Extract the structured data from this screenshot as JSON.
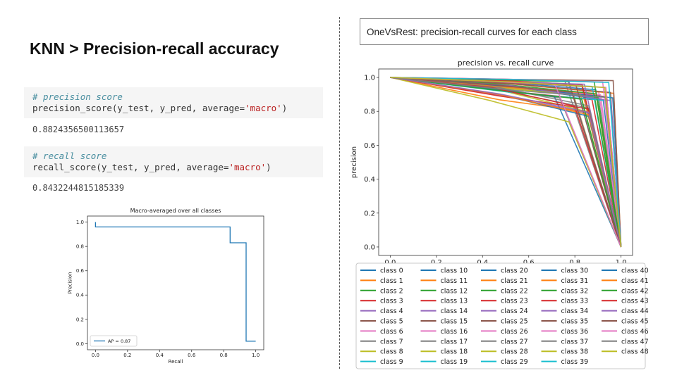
{
  "slide": {
    "title": "KNN > Precision-recall accuracy",
    "right_caption": "OneVsRest: precision-recall curves for each class"
  },
  "code_cells": [
    {
      "comment": "# precision score",
      "code_prefix": "precision_score(y_test, y_pred, average=",
      "code_string": "'macro'",
      "code_suffix": ")",
      "output": "0.8824356500113657"
    },
    {
      "comment": "# recall score",
      "code_prefix": "recall_score(y_test, y_pred, average=",
      "code_string": "'macro'",
      "code_suffix": ")",
      "output": "0.8432244815185339"
    }
  ],
  "chart_data": [
    {
      "type": "line",
      "title": "Macro-averaged over all classes",
      "xlabel": "Recall",
      "ylabel": "Precision",
      "xlim": [
        -0.05,
        1.05
      ],
      "ylim": [
        -0.05,
        1.05
      ],
      "xticks": [
        "0.0",
        "0.2",
        "0.4",
        "0.6",
        "0.8",
        "1.0"
      ],
      "yticks": [
        "0.0",
        "0.2",
        "0.4",
        "0.6",
        "0.8",
        "1.0"
      ],
      "series": [
        {
          "name": "AP = 0.87",
          "color": "#1f77b4",
          "step": true,
          "x": [
            0.0,
            0.0,
            0.84,
            0.84,
            0.94,
            0.94,
            1.0
          ],
          "y": [
            1.0,
            0.96,
            0.96,
            0.83,
            0.83,
            0.02,
            0.02
          ]
        }
      ],
      "legend_position": "lower-left",
      "grid": false
    },
    {
      "type": "line",
      "title": "precision vs. recall curve",
      "xlabel": "",
      "ylabel": "precision",
      "xlim": [
        -0.05,
        1.05
      ],
      "ylim": [
        -0.05,
        1.05
      ],
      "xticks": [
        "0.0",
        "0.2",
        "0.4",
        "0.6",
        "0.8",
        "1.0"
      ],
      "yticks": [
        "0.0",
        "0.2",
        "0.4",
        "0.6",
        "0.8",
        "1.0"
      ],
      "grid": false,
      "legend_position": "below",
      "legend_columns": 5,
      "palette": [
        "#1f77b4",
        "#ff7f0e",
        "#2ca02c",
        "#d62728",
        "#9467bd",
        "#8c564b",
        "#e377c2",
        "#7f7f7f",
        "#bcbd22",
        "#17becf"
      ],
      "classes": [
        "class 0",
        "class 1",
        "class 2",
        "class 3",
        "class 4",
        "class 5",
        "class 6",
        "class 7",
        "class 8",
        "class 9",
        "class 10",
        "class 11",
        "class 12",
        "class 13",
        "class 14",
        "class 15",
        "class 16",
        "class 17",
        "class 18",
        "class 19",
        "class 20",
        "class 21",
        "class 22",
        "class 23",
        "class 24",
        "class 25",
        "class 26",
        "class 27",
        "class 28",
        "class 29",
        "class 30",
        "class 31",
        "class 32",
        "class 33",
        "class 34",
        "class 35",
        "class 36",
        "class 37",
        "class 38",
        "class 39",
        "class 40",
        "class 41",
        "class 42",
        "class 43",
        "class 44",
        "class 45",
        "class 46",
        "class 47",
        "class 48"
      ],
      "series_shape": {
        "start": [
          0.0,
          1.0
        ],
        "end": [
          1.0,
          0.0
        ],
        "knee_recall_min": 0.68,
        "knee_recall_max": 0.97,
        "knee_precision_min": 0.65,
        "knee_precision_max": 0.99
      }
    }
  ]
}
